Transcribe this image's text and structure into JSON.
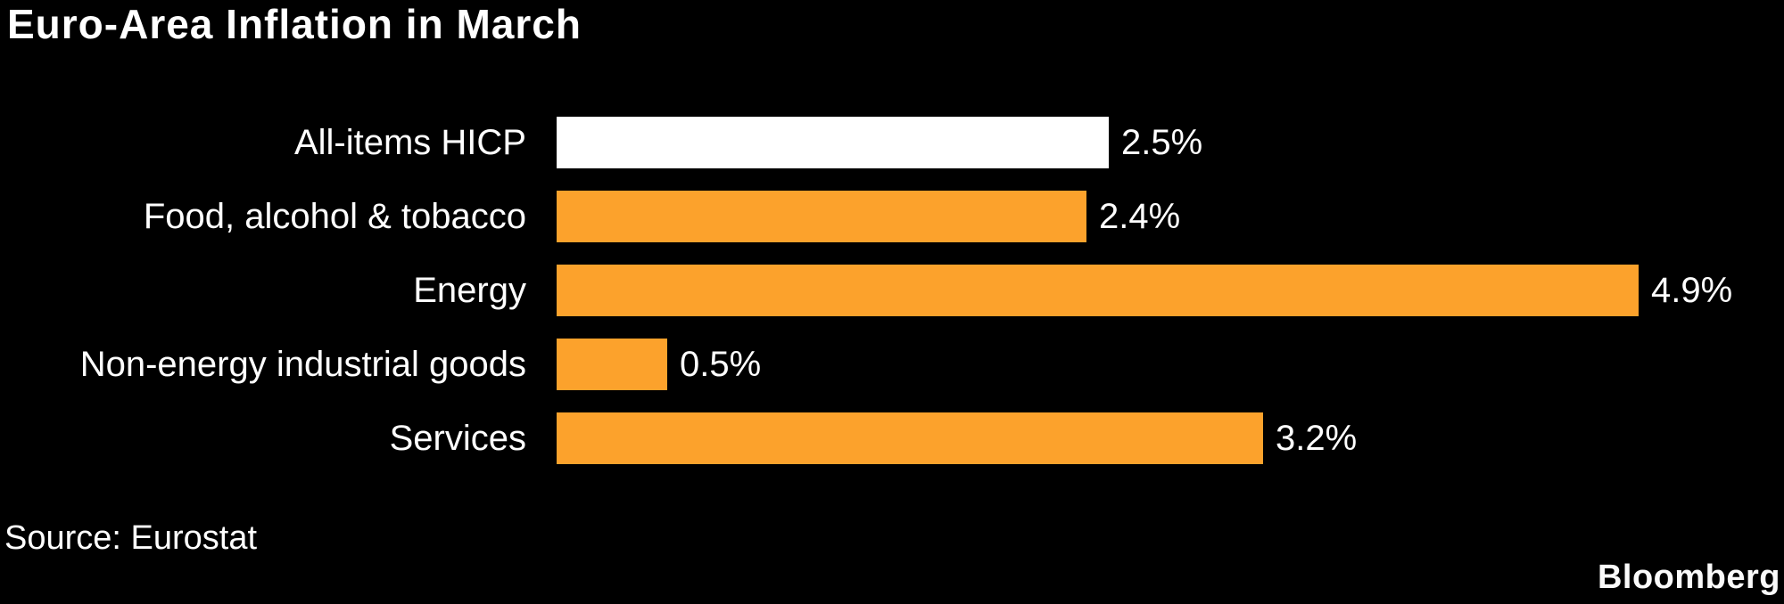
{
  "title": "Euro-Area Inflation in March",
  "source": "Source: Eurostat",
  "logo": "Bloomberg",
  "colors": {
    "background": "#000000",
    "text": "#FFFFFF",
    "accent_orange": "#FCA22C",
    "highlight_bar_white": "#FFFFFF"
  },
  "chart_data": {
    "type": "bar",
    "orientation": "horizontal",
    "title": "Euro-Area Inflation in March",
    "categories": [
      "All-items HICP",
      "Food, alcohol & tobacco",
      "Energy",
      "Non-energy industrial goods",
      "Services"
    ],
    "values": [
      2.5,
      2.4,
      4.9,
      0.5,
      3.2
    ],
    "value_labels": [
      "2.5%",
      "2.4%",
      "4.9%",
      "0.5%",
      "3.2%"
    ],
    "bar_colors": [
      "#FFFFFF",
      "#FCA22C",
      "#FCA22C",
      "#FCA22C",
      "#FCA22C"
    ],
    "unit": "%",
    "xlabel": "",
    "ylabel": "",
    "xlim": [
      0,
      4.9
    ],
    "grid": false,
    "legend": false,
    "source_label": "Source: Eurostat",
    "attribution": "Bloomberg"
  }
}
